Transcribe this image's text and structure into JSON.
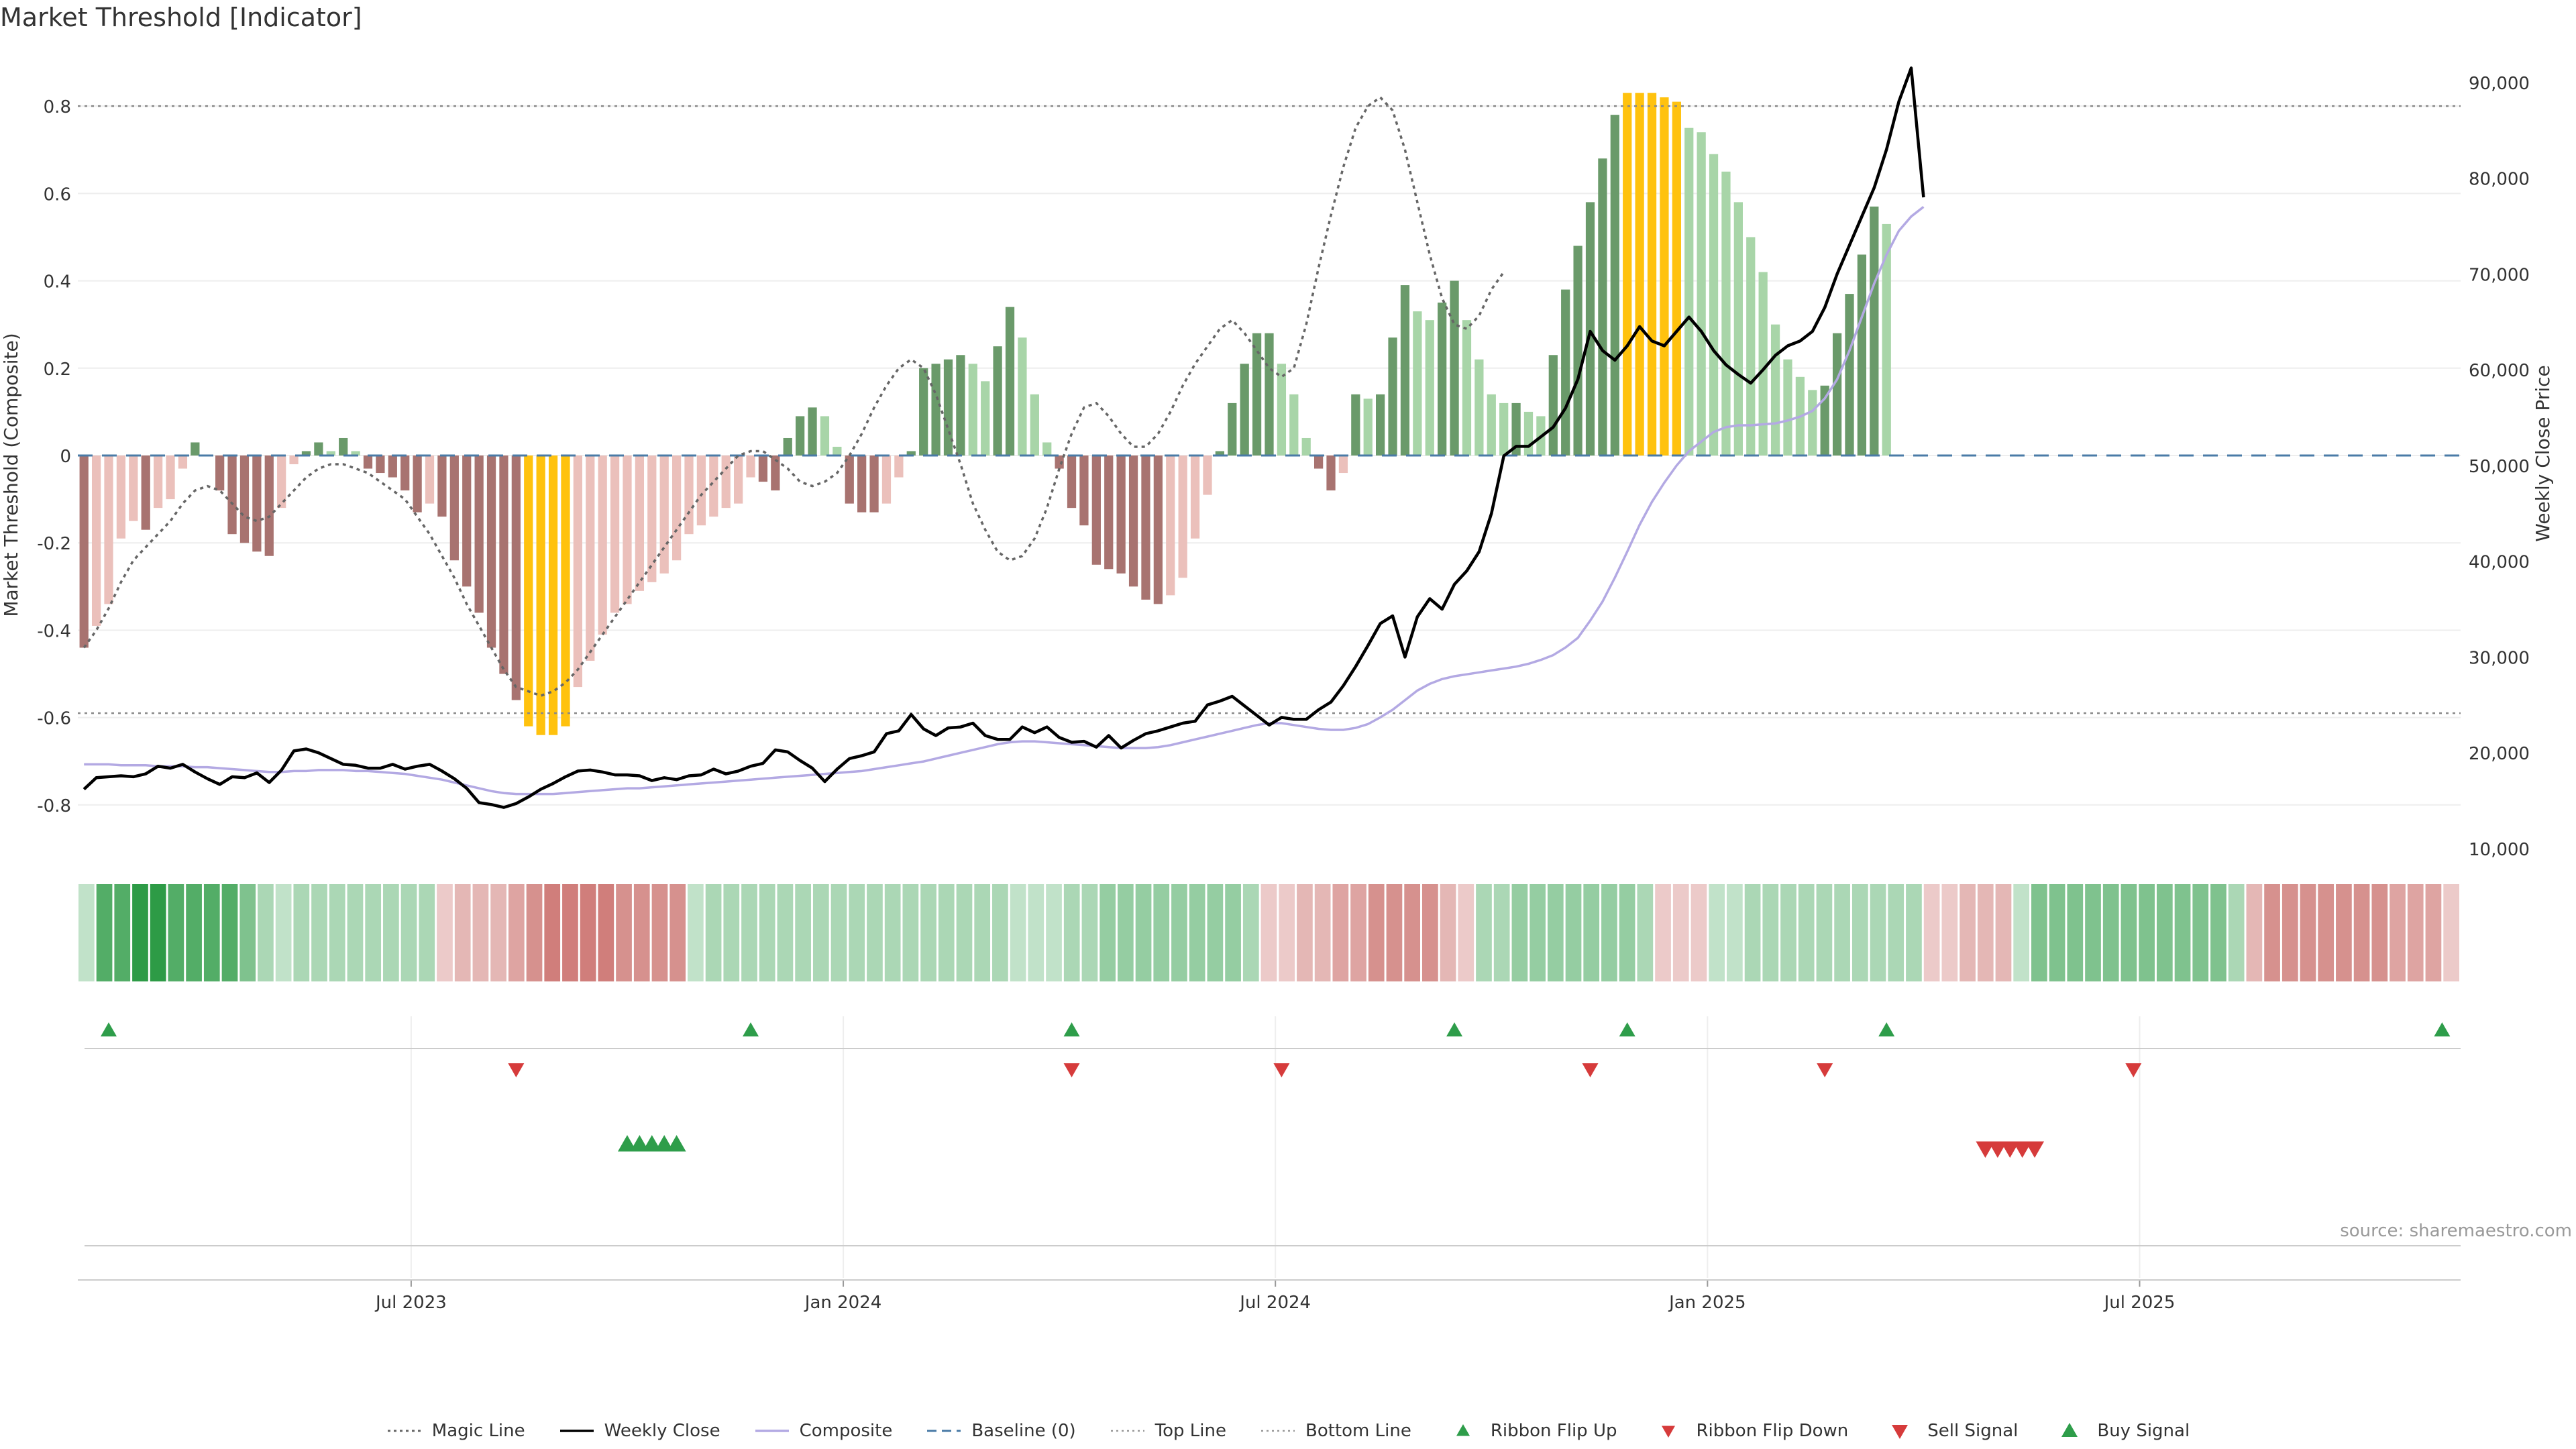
{
  "title": "Market Threshold [Indicator]",
  "source": "source: sharemaestro.com",
  "colors": {
    "strong_green": "#6a9a6a",
    "light_green": "#a8d5a8",
    "strong_red": "#a87370",
    "light_red": "#ebc0bb",
    "yellow": "#ffc20e",
    "weekly_close": "#000000",
    "composite": "#b3a9e3",
    "magic_line": "#666666",
    "baseline": "#4a7ba7",
    "buy": "#2e9d4a",
    "sell": "#d63b3b"
  },
  "legend": [
    {
      "label": "Magic Line",
      "kind": "dotted"
    },
    {
      "label": "Weekly Close",
      "kind": "solid"
    },
    {
      "label": "Composite",
      "kind": "lavender"
    },
    {
      "label": "Baseline (0)",
      "kind": "dashed"
    },
    {
      "label": "Top Line",
      "kind": "dotted-light"
    },
    {
      "label": "Bottom Line",
      "kind": "dotted-light"
    },
    {
      "label": "Ribbon Flip Up",
      "kind": "tri-up-small"
    },
    {
      "label": "Ribbon Flip Down",
      "kind": "tri-down-small"
    },
    {
      "label": "Sell Signal",
      "kind": "tri-down"
    },
    {
      "label": "Buy Signal",
      "kind": "tri-up"
    }
  ],
  "chart_data": {
    "type": "bar",
    "title": "Market Threshold [Indicator]",
    "ylabel": "Market Threshold (Composite)",
    "y2label": "Weekly Close Price",
    "ylim": [
      -0.9,
      0.92
    ],
    "y2lim": [
      10000,
      93000
    ],
    "yticks": [
      -0.8,
      -0.6,
      -0.4,
      -0.2,
      0,
      0.2,
      0.4,
      0.6,
      0.8
    ],
    "y2ticks": [
      10000,
      20000,
      30000,
      40000,
      50000,
      60000,
      70000,
      80000,
      90000
    ],
    "y2tick_labels": [
      "10,000",
      "20,000",
      "30,000",
      "40,000",
      "50,000",
      "60,000",
      "70,000",
      "80,000",
      "90,000"
    ],
    "top_line": 0.8,
    "bottom_line": -0.59,
    "x_ticks": [
      {
        "week": 27,
        "label": "Jul 2023"
      },
      {
        "week": 62,
        "label": "Jan 2024"
      },
      {
        "week": 97,
        "label": "Jul 2024"
      },
      {
        "week": 132,
        "label": "Jan 2025"
      },
      {
        "week": 167,
        "label": "Jul 2025"
      }
    ],
    "weeks": 193,
    "composite_bars": [
      -0.44,
      -0.39,
      -0.34,
      -0.19,
      -0.15,
      -0.17,
      -0.12,
      -0.1,
      -0.03,
      0.03,
      0,
      -0.08,
      -0.18,
      -0.2,
      -0.22,
      -0.23,
      -0.12,
      -0.02,
      0.01,
      0.03,
      0.01,
      0.04,
      0.01,
      -0.03,
      -0.04,
      -0.05,
      -0.08,
      -0.13,
      -0.11,
      -0.14,
      -0.24,
      -0.3,
      -0.36,
      -0.44,
      -0.5,
      -0.56,
      -0.62,
      -0.64,
      -0.64,
      -0.62,
      -0.53,
      -0.47,
      -0.41,
      -0.36,
      -0.34,
      -0.31,
      -0.29,
      -0.27,
      -0.24,
      -0.18,
      -0.16,
      -0.14,
      -0.12,
      -0.11,
      -0.05,
      -0.06,
      -0.08,
      0.04,
      0.09,
      0.11,
      0.09,
      0.02,
      -0.11,
      -0.13,
      -0.13,
      -0.11,
      -0.05,
      0.01,
      0.2,
      0.21,
      0.22,
      0.23,
      0.21,
      0.17,
      0.25,
      0.34,
      0.27,
      0.14,
      0.03,
      -0.03,
      -0.12,
      -0.16,
      -0.25,
      -0.26,
      -0.27,
      -0.3,
      -0.33,
      -0.34,
      -0.32,
      -0.28,
      -0.19,
      -0.09,
      0.01,
      0.12,
      0.21,
      0.28,
      0.28,
      0.21,
      0.14,
      0.04,
      -0.03,
      -0.08,
      -0.04,
      0.14,
      0.13,
      0.14,
      0.27,
      0.39,
      0.33,
      0.31,
      0.35,
      0.4,
      0.31,
      0.22,
      0.14,
      0.12,
      0.12,
      0.1,
      0.09,
      0.23,
      0.38,
      0.48,
      0.58,
      0.68,
      0.78,
      0.83,
      0.83,
      0.83,
      0.82,
      0.81,
      0.75,
      0.74,
      0.69,
      0.65,
      0.58,
      0.5,
      0.42,
      0.3,
      0.22,
      0.18,
      0.15,
      0.16,
      0.28,
      0.37,
      0.46,
      0.57,
      0.53
    ],
    "weekly_close": [
      16200,
      17400,
      17500,
      17600,
      17500,
      17800,
      18600,
      18400,
      18800,
      18000,
      17300,
      16700,
      17500,
      17400,
      17900,
      16900,
      18200,
      20200,
      20400,
      20000,
      19400,
      18800,
      18700,
      18400,
      18400,
      18800,
      18300,
      18600,
      18800,
      18100,
      17300,
      16300,
      14800,
      14600,
      14300,
      14700,
      15400,
      16200,
      16800,
      17500,
      18100,
      18200,
      18000,
      17700,
      17700,
      17600,
      17100,
      17400,
      17200,
      17600,
      17700,
      18300,
      17800,
      18100,
      18600,
      18900,
      20300,
      20100,
      19200,
      18400,
      17000,
      18300,
      19400,
      19700,
      20100,
      22000,
      22300,
      24000,
      22500,
      21800,
      22600,
      22700,
      23100,
      21800,
      21400,
      21400,
      22700,
      22100,
      22700,
      21600,
      21100,
      21200,
      20600,
      21800,
      20500,
      21300,
      22000,
      22300,
      22700,
      23100,
      23300,
      25000,
      25400,
      25900,
      24900,
      23900,
      22900,
      23700,
      23500,
      23500,
      24500,
      25300,
      27000,
      29000,
      31200,
      33500,
      34300,
      30000,
      34200,
      36100,
      35000,
      37600,
      39000,
      41000,
      45000,
      51000,
      52000,
      52000,
      53000,
      54000,
      56000,
      59000,
      64000,
      62000,
      61000,
      62500,
      64500,
      63000,
      62500,
      64000,
      65500,
      64000,
      62000,
      60500,
      59500,
      58600,
      60000,
      61500,
      62500,
      63000,
      64000,
      66500,
      70000,
      73000,
      76000,
      79000,
      83000,
      88000,
      91500,
      78000
    ],
    "composite_line": [
      18800,
      18800,
      18800,
      18700,
      18700,
      18700,
      18600,
      18600,
      18600,
      18500,
      18500,
      18400,
      18300,
      18200,
      18100,
      18000,
      18000,
      18100,
      18100,
      18200,
      18200,
      18200,
      18100,
      18100,
      18000,
      17900,
      17800,
      17600,
      17400,
      17200,
      16900,
      16600,
      16300,
      16000,
      15800,
      15700,
      15700,
      15700,
      15700,
      15800,
      15900,
      16000,
      16100,
      16200,
      16300,
      16300,
      16400,
      16500,
      16600,
      16700,
      16800,
      16900,
      17000,
      17100,
      17200,
      17300,
      17400,
      17500,
      17600,
      17700,
      17800,
      17900,
      18000,
      18100,
      18300,
      18500,
      18700,
      18900,
      19100,
      19400,
      19700,
      20000,
      20300,
      20600,
      20900,
      21100,
      21200,
      21200,
      21100,
      21000,
      20900,
      20800,
      20700,
      20600,
      20500,
      20500,
      20500,
      20600,
      20800,
      21100,
      21400,
      21700,
      22000,
      22300,
      22600,
      22900,
      23100,
      23100,
      22900,
      22700,
      22500,
      22400,
      22400,
      22600,
      23000,
      23700,
      24500,
      25500,
      26500,
      27200,
      27700,
      28000,
      28200,
      28400,
      28600,
      28800,
      29000,
      29300,
      29700,
      30200,
      31000,
      32000,
      33800,
      35800,
      38300,
      41000,
      43800,
      46200,
      48200,
      50000,
      51500,
      52500,
      53500,
      54000,
      54200,
      54200,
      54300,
      54400,
      54700,
      55100,
      55700,
      57000,
      59000,
      62000,
      65500,
      69000,
      72000,
      74500,
      76000,
      77000
    ],
    "magic_line": [
      -0.44,
      -0.4,
      -0.35,
      -0.29,
      -0.24,
      -0.21,
      -0.18,
      -0.15,
      -0.11,
      -0.08,
      -0.07,
      -0.08,
      -0.11,
      -0.14,
      -0.15,
      -0.14,
      -0.11,
      -0.08,
      -0.05,
      -0.03,
      -0.02,
      -0.02,
      -0.03,
      -0.04,
      -0.06,
      -0.08,
      -0.1,
      -0.14,
      -0.18,
      -0.23,
      -0.28,
      -0.34,
      -0.39,
      -0.44,
      -0.49,
      -0.53,
      -0.54,
      -0.55,
      -0.54,
      -0.52,
      -0.49,
      -0.45,
      -0.41,
      -0.37,
      -0.33,
      -0.29,
      -0.25,
      -0.21,
      -0.17,
      -0.13,
      -0.09,
      -0.06,
      -0.03,
      0,
      0.01,
      0.01,
      -0.01,
      -0.03,
      -0.06,
      -0.07,
      -0.06,
      -0.04,
      0,
      0.05,
      0.11,
      0.16,
      0.2,
      0.22,
      0.2,
      0.14,
      0.06,
      -0.02,
      -0.11,
      -0.17,
      -0.22,
      -0.24,
      -0.23,
      -0.19,
      -0.12,
      -0.03,
      0.05,
      0.11,
      0.12,
      0.09,
      0.05,
      0.02,
      0.02,
      0.05,
      0.1,
      0.16,
      0.21,
      0.25,
      0.29,
      0.31,
      0.28,
      0.24,
      0.2,
      0.18,
      0.2,
      0.3,
      0.43,
      0.55,
      0.66,
      0.75,
      0.8,
      0.82,
      0.79,
      0.7,
      0.58,
      0.46,
      0.36,
      0.3,
      0.29,
      0.32,
      0.38,
      0.42
    ],
    "ribbon": [
      0.05,
      0.3,
      0.3,
      0.4,
      0.4,
      0.3,
      0.3,
      0.3,
      0.3,
      0.2,
      0.1,
      0.05,
      0.1,
      0.1,
      0.1,
      0.1,
      0.1,
      0.1,
      0.1,
      0.1,
      -0.05,
      -0.1,
      -0.1,
      -0.1,
      -0.15,
      -0.2,
      -0.25,
      -0.25,
      -0.25,
      -0.25,
      -0.2,
      -0.2,
      -0.2,
      -0.2,
      0.05,
      0.1,
      0.1,
      0.1,
      0.1,
      0.1,
      0.1,
      0.1,
      0.1,
      0.1,
      0.1,
      0.1,
      0.1,
      0.1,
      0.1,
      0.1,
      0.1,
      0.1,
      0.05,
      0.05,
      0.05,
      0.1,
      0.1,
      0.15,
      0.15,
      0.15,
      0.15,
      0.15,
      0.15,
      0.15,
      0.15,
      0.1,
      -0.05,
      -0.05,
      -0.1,
      -0.1,
      -0.15,
      -0.15,
      -0.2,
      -0.2,
      -0.2,
      -0.2,
      -0.1,
      -0.05,
      0.1,
      0.1,
      0.15,
      0.15,
      0.15,
      0.15,
      0.15,
      0.15,
      0.15,
      0.1,
      -0.05,
      -0.05,
      -0.05,
      0.05,
      0.05,
      0.1,
      0.1,
      0.1,
      0.1,
      0.1,
      0.1,
      0.1,
      0.1,
      0.1,
      0.1,
      -0.05,
      -0.05,
      -0.1,
      -0.1,
      -0.1,
      0.05,
      0.2,
      0.2,
      0.2,
      0.2,
      0.2,
      0.2,
      0.2,
      0.2,
      0.2,
      0.2,
      0.2,
      0.1,
      -0.1,
      -0.2,
      -0.2,
      -0.2,
      -0.2,
      -0.2,
      -0.2,
      -0.2,
      -0.15,
      -0.15,
      -0.15,
      -0.05
    ],
    "ribbon_flip_up": [
      2,
      54,
      80,
      111,
      125,
      146,
      191
    ],
    "ribbon_flip_down": [
      35,
      80,
      97,
      122,
      141,
      166
    ],
    "buy_signal": [
      44,
      45,
      46,
      47,
      48
    ],
    "sell_signal": [
      154,
      155,
      156,
      157,
      158
    ]
  }
}
